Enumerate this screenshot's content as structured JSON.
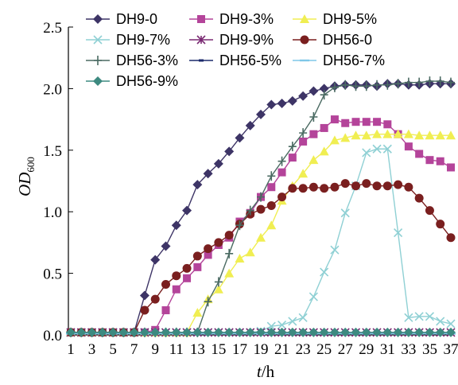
{
  "chart_data": {
    "type": "line",
    "xlabel_italic": "t",
    "xlabel_unit": "/h",
    "ylabel_main": "OD",
    "ylabel_sub": "600",
    "xlim": [
      1,
      37
    ],
    "ylim": [
      0,
      2.5
    ],
    "x_ticks": [
      1,
      3,
      5,
      7,
      9,
      11,
      13,
      15,
      17,
      19,
      21,
      23,
      25,
      27,
      29,
      31,
      33,
      35,
      37
    ],
    "y_ticks": [
      "0.0",
      "0.5",
      "1.0",
      "1.5",
      "2.0",
      "2.5"
    ],
    "y_tick_values": [
      0,
      0.5,
      1.0,
      1.5,
      2.0,
      2.5
    ],
    "x": [
      1,
      2,
      3,
      4,
      5,
      6,
      7,
      8,
      9,
      10,
      11,
      12,
      13,
      14,
      15,
      16,
      17,
      18,
      19,
      20,
      21,
      22,
      23,
      24,
      25,
      26,
      27,
      28,
      29,
      30,
      31,
      32,
      33,
      34,
      35,
      36,
      37
    ],
    "legend_position": "top-left",
    "series": [
      {
        "name": "DH9-0",
        "color": "#3d3466",
        "marker": "diamond",
        "values": [
          0.02,
          0.02,
          0.02,
          0.02,
          0.02,
          0.02,
          0.02,
          0.32,
          0.61,
          0.72,
          0.89,
          1.01,
          1.22,
          1.31,
          1.39,
          1.49,
          1.6,
          1.7,
          1.79,
          1.87,
          1.88,
          1.9,
          1.94,
          1.98,
          2.0,
          2.02,
          2.03,
          2.03,
          2.03,
          2.02,
          2.04,
          2.04,
          2.03,
          2.03,
          2.04,
          2.04,
          2.04
        ]
      },
      {
        "name": "DH9-3%",
        "color": "#b4449a",
        "marker": "square",
        "values": [
          0.02,
          0.02,
          0.02,
          0.02,
          0.02,
          0.02,
          0.02,
          0.02,
          0.04,
          0.2,
          0.37,
          0.46,
          0.55,
          0.65,
          0.73,
          0.79,
          0.92,
          0.99,
          1.12,
          1.2,
          1.32,
          1.44,
          1.57,
          1.63,
          1.68,
          1.75,
          1.72,
          1.73,
          1.73,
          1.73,
          1.71,
          1.63,
          1.53,
          1.47,
          1.42,
          1.41,
          1.36
        ]
      },
      {
        "name": "DH9-5%",
        "color": "#f0ee52",
        "marker": "triangle",
        "values": [
          0.02,
          0.02,
          0.02,
          0.02,
          0.02,
          0.02,
          0.02,
          0.02,
          0.02,
          0.02,
          0.02,
          0.02,
          0.18,
          0.29,
          0.37,
          0.5,
          0.62,
          0.67,
          0.79,
          0.89,
          1.09,
          1.21,
          1.31,
          1.42,
          1.49,
          1.58,
          1.6,
          1.62,
          1.62,
          1.63,
          1.63,
          1.63,
          1.63,
          1.62,
          1.62,
          1.62,
          1.62
        ]
      },
      {
        "name": "DH9-7%",
        "color": "#8fd0d4",
        "marker": "x",
        "values": [
          0.02,
          0.02,
          0.02,
          0.02,
          0.02,
          0.02,
          0.02,
          0.02,
          0.02,
          0.02,
          0.02,
          0.02,
          0.02,
          0.02,
          0.02,
          0.02,
          0.02,
          0.02,
          0.03,
          0.07,
          0.08,
          0.11,
          0.14,
          0.31,
          0.51,
          0.69,
          0.99,
          1.21,
          1.48,
          1.51,
          1.51,
          0.83,
          0.14,
          0.15,
          0.15,
          0.11,
          0.09
        ]
      },
      {
        "name": "DH9-9%",
        "color": "#7a2a73",
        "marker": "star",
        "values": [
          0.02,
          0.02,
          0.02,
          0.02,
          0.02,
          0.02,
          0.02,
          0.02,
          0.02,
          0.02,
          0.02,
          0.02,
          0.02,
          0.02,
          0.02,
          0.02,
          0.02,
          0.02,
          0.02,
          0.02,
          0.02,
          0.02,
          0.02,
          0.02,
          0.02,
          0.02,
          0.02,
          0.02,
          0.02,
          0.02,
          0.02,
          0.02,
          0.02,
          0.02,
          0.02,
          0.02,
          0.02
        ]
      },
      {
        "name": "DH56-0",
        "color": "#7a1f1f",
        "marker": "circle",
        "values": [
          0.02,
          0.02,
          0.02,
          0.02,
          0.02,
          0.02,
          0.02,
          0.2,
          0.29,
          0.41,
          0.48,
          0.54,
          0.64,
          0.7,
          0.75,
          0.81,
          0.9,
          0.98,
          1.02,
          1.05,
          1.12,
          1.19,
          1.19,
          1.2,
          1.19,
          1.2,
          1.23,
          1.21,
          1.23,
          1.21,
          1.21,
          1.22,
          1.2,
          1.11,
          1.01,
          0.9,
          0.79
        ]
      },
      {
        "name": "DH56-3%",
        "color": "#4a6a62",
        "marker": "plus",
        "values": [
          0.02,
          0.02,
          0.02,
          0.02,
          0.02,
          0.02,
          0.02,
          0.02,
          0.02,
          0.02,
          0.02,
          0.02,
          0.02,
          0.27,
          0.43,
          0.66,
          0.89,
          1.01,
          1.12,
          1.29,
          1.41,
          1.53,
          1.64,
          1.77,
          1.95,
          2.01,
          2.03,
          2.02,
          2.02,
          2.03,
          2.03,
          2.04,
          2.05,
          2.05,
          2.06,
          2.06,
          2.05
        ]
      },
      {
        "name": "DH56-5%",
        "color": "#1b2a6b",
        "marker": "dash",
        "values": [
          0.01,
          0.01,
          0.01,
          0.01,
          0.01,
          0.01,
          0.01,
          0.01,
          0.01,
          0.01,
          0.01,
          0.01,
          0.01,
          0.01,
          0.01,
          0.01,
          0.01,
          0.01,
          0.01,
          0.01,
          0.01,
          0.01,
          0.01,
          0.01,
          0.01,
          0.01,
          0.01,
          0.01,
          0.01,
          0.01,
          0.01,
          0.01,
          0.01,
          0.01,
          0.01,
          0.01,
          0.01
        ]
      },
      {
        "name": "DH56-7%",
        "color": "#7fc7e8",
        "marker": "hbar",
        "values": [
          0.01,
          0.01,
          0.01,
          0.01,
          0.01,
          0.01,
          0.01,
          0.01,
          0.01,
          0.01,
          0.01,
          0.01,
          0.01,
          0.01,
          0.01,
          0.01,
          0.01,
          0.01,
          0.01,
          0.01,
          0.01,
          0.01,
          0.01,
          0.01,
          0.01,
          0.01,
          0.01,
          0.01,
          0.01,
          0.01,
          0.01,
          0.01,
          0.01,
          0.01,
          0.01,
          0.01,
          0.01
        ]
      },
      {
        "name": "DH56-9%",
        "color": "#3d8a80",
        "marker": "diamond",
        "values": [
          0.02,
          0.02,
          0.02,
          0.02,
          0.02,
          0.02,
          0.02,
          0.02,
          0.02,
          0.02,
          0.02,
          0.02,
          0.02,
          0.02,
          0.02,
          0.02,
          0.02,
          0.02,
          0.02,
          0.02,
          0.02,
          0.02,
          0.02,
          0.02,
          0.02,
          0.02,
          0.02,
          0.02,
          0.02,
          0.02,
          0.02,
          0.02,
          0.02,
          0.02,
          0.02,
          0.02,
          0.02
        ]
      }
    ]
  }
}
